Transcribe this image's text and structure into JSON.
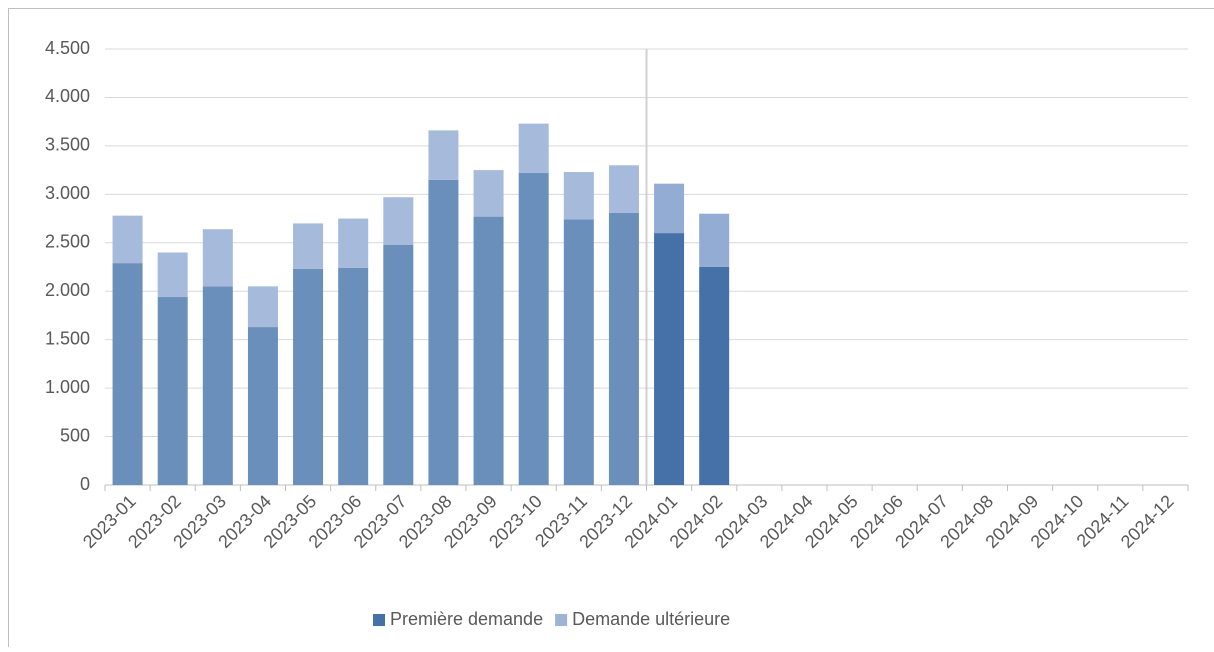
{
  "chart_data": {
    "type": "stacked-bar",
    "categories": [
      "2023-01",
      "2023-02",
      "2023-03",
      "2023-04",
      "2023-05",
      "2023-06",
      "2023-07",
      "2023-08",
      "2023-09",
      "2023-10",
      "2023-11",
      "2023-12",
      "2024-01",
      "2024-02",
      "2024-03",
      "2024-04",
      "2024-05",
      "2024-06",
      "2024-07",
      "2024-08",
      "2024-09",
      "2024-10",
      "2024-11",
      "2024-12"
    ],
    "series": [
      {
        "name": "Première demande",
        "color": "#4571a8",
        "point_colors": [
          "#6a8fbb",
          "#6a8fbb",
          "#6a8fbb",
          "#6a8fbb",
          "#6a8fbb",
          "#6a8fbb",
          "#6a8fbb",
          "#6a8fbb",
          "#6a8fbb",
          "#6a8fbb",
          "#6a8fbb",
          "#6a8fbb",
          "#4571a8",
          "#4571a8",
          "#4571a8",
          "#4571a8",
          "#4571a8",
          "#4571a8",
          "#4571a8",
          "#4571a8",
          "#4571a8",
          "#4571a8",
          "#4571a8",
          "#4571a8"
        ],
        "values": [
          2290,
          1940,
          2050,
          1630,
          2230,
          2240,
          2480,
          3150,
          2770,
          3220,
          2740,
          2810,
          2600,
          2250,
          null,
          null,
          null,
          null,
          null,
          null,
          null,
          null,
          null,
          null
        ]
      },
      {
        "name": "Demande ultérieure",
        "color": "#9eb3d6",
        "point_colors": [
          "#a6badb",
          "#a6badb",
          "#a6badb",
          "#a6badb",
          "#a6badb",
          "#a6badb",
          "#a6badb",
          "#a6badb",
          "#a6badb",
          "#a6badb",
          "#a6badb",
          "#a6badb",
          "#93acd3",
          "#93acd3",
          "#93acd3",
          "#93acd3",
          "#93acd3",
          "#93acd3",
          "#93acd3",
          "#93acd3",
          "#93acd3",
          "#93acd3",
          "#93acd3",
          "#93acd3"
        ],
        "values": [
          490,
          460,
          590,
          420,
          470,
          510,
          490,
          510,
          480,
          510,
          490,
          490,
          510,
          550,
          null,
          null,
          null,
          null,
          null,
          null,
          null,
          null,
          null,
          null
        ]
      }
    ],
    "ylim": [
      0,
      4500
    ],
    "yticks": [
      0,
      500,
      {
        "value": 1000,
        "label": "1.000"
      },
      {
        "value": 1500,
        "label": "1.500"
      },
      {
        "value": 2000,
        "label": "2.000"
      },
      {
        "value": 2500,
        "label": "2.500"
      },
      {
        "value": 3000,
        "label": "3.000"
      },
      {
        "value": 3500,
        "label": "3.500"
      },
      {
        "value": 4000,
        "label": "4.000"
      },
      {
        "value": 4500,
        "label": "4.500"
      }
    ],
    "grid": true,
    "legend": "bottom"
  }
}
